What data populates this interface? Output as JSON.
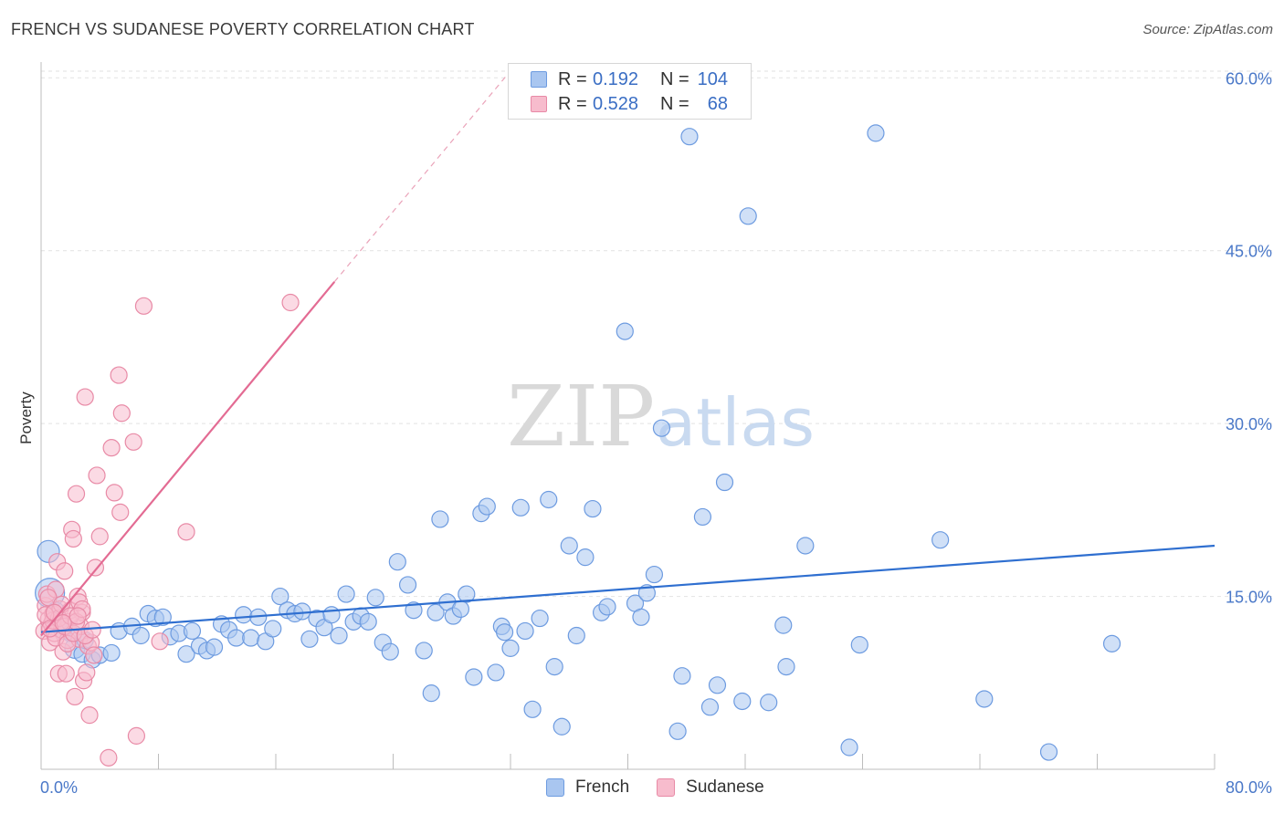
{
  "title": "FRENCH VS SUDANESE POVERTY CORRELATION CHART",
  "source": "Source: ZipAtlas.com",
  "watermark": {
    "zip": "ZIP",
    "atlas": "atlas"
  },
  "legend": {
    "rows": [
      {
        "label": "R =",
        "r": "0.192",
        "n_label": "N =",
        "n": "104",
        "color": "#a9c6f0",
        "border": "#6d9be0"
      },
      {
        "label": "R =",
        "r": "0.528",
        "n_label": "N =",
        "n": "68",
        "color": "#f7bccd",
        "border": "#e88aa6"
      }
    ]
  },
  "bottom_legend": [
    {
      "label": "French",
      "color": "#a9c6f0",
      "border": "#6d9be0"
    },
    {
      "label": "Sudanese",
      "color": "#f7bccd",
      "border": "#e88aa6"
    }
  ],
  "chart_data": {
    "type": "scatter",
    "title": "FRENCH VS SUDANESE POVERTY CORRELATION CHART",
    "xlabel": "",
    "ylabel": "Poverty",
    "xlim": [
      0,
      80
    ],
    "ylim": [
      0,
      62
    ],
    "x_tick_labels": [
      "0.0%",
      "80.0%"
    ],
    "y_ticks": [
      15,
      30,
      45,
      60
    ],
    "y_tick_labels": [
      "15.0%",
      "30.0%",
      "45.0%",
      "60.0%"
    ],
    "grid": true,
    "legend_position": "top-center",
    "series": [
      {
        "name": "French",
        "color": "#6d9be0",
        "fill": "#a9c6f0",
        "trend": {
          "x": [
            0,
            80
          ],
          "y": [
            11.9,
            19.4
          ],
          "color": "#2f6fd0"
        },
        "points": [
          [
            0.5,
            18.9
          ],
          [
            0.6,
            15.3
          ],
          [
            1.0,
            13.8
          ],
          [
            1.2,
            12.7
          ],
          [
            1.5,
            12.0
          ],
          [
            2.0,
            11.8
          ],
          [
            2.3,
            10.5
          ],
          [
            2.8,
            10.0
          ],
          [
            3.0,
            11.2
          ],
          [
            3.5,
            9.5
          ],
          [
            4.0,
            9.9
          ],
          [
            4.8,
            10.1
          ],
          [
            5.3,
            12.0
          ],
          [
            6.2,
            12.4
          ],
          [
            6.8,
            11.6
          ],
          [
            7.3,
            13.5
          ],
          [
            7.8,
            13.1
          ],
          [
            8.3,
            13.2
          ],
          [
            8.8,
            11.5
          ],
          [
            9.4,
            11.8
          ],
          [
            9.9,
            10.0
          ],
          [
            10.3,
            12.0
          ],
          [
            10.8,
            10.7
          ],
          [
            11.3,
            10.3
          ],
          [
            11.8,
            10.6
          ],
          [
            12.3,
            12.6
          ],
          [
            12.8,
            12.1
          ],
          [
            13.3,
            11.4
          ],
          [
            13.8,
            13.4
          ],
          [
            14.3,
            11.4
          ],
          [
            14.8,
            13.2
          ],
          [
            15.3,
            11.1
          ],
          [
            15.8,
            12.2
          ],
          [
            16.3,
            15.0
          ],
          [
            16.8,
            13.8
          ],
          [
            17.3,
            13.5
          ],
          [
            17.8,
            13.7
          ],
          [
            18.3,
            11.3
          ],
          [
            18.8,
            13.1
          ],
          [
            19.3,
            12.3
          ],
          [
            19.8,
            13.4
          ],
          [
            20.3,
            11.6
          ],
          [
            20.8,
            15.2
          ],
          [
            21.3,
            12.8
          ],
          [
            21.8,
            13.3
          ],
          [
            22.3,
            12.8
          ],
          [
            22.8,
            14.9
          ],
          [
            23.3,
            11.0
          ],
          [
            23.8,
            10.2
          ],
          [
            24.3,
            18.0
          ],
          [
            25.0,
            16.0
          ],
          [
            25.4,
            13.8
          ],
          [
            26.1,
            10.3
          ],
          [
            26.6,
            6.6
          ],
          [
            26.9,
            13.6
          ],
          [
            27.2,
            21.7
          ],
          [
            27.7,
            14.5
          ],
          [
            28.1,
            13.3
          ],
          [
            28.6,
            13.9
          ],
          [
            29.0,
            15.2
          ],
          [
            29.5,
            8.0
          ],
          [
            30.0,
            22.2
          ],
          [
            30.4,
            22.8
          ],
          [
            31.0,
            8.4
          ],
          [
            31.4,
            12.4
          ],
          [
            31.6,
            11.9
          ],
          [
            32.0,
            10.5
          ],
          [
            32.7,
            22.7
          ],
          [
            33.0,
            12.0
          ],
          [
            33.5,
            5.2
          ],
          [
            34.0,
            13.1
          ],
          [
            34.6,
            23.4
          ],
          [
            35.0,
            8.9
          ],
          [
            35.5,
            3.7
          ],
          [
            36.0,
            19.4
          ],
          [
            36.5,
            11.6
          ],
          [
            37.1,
            18.4
          ],
          [
            37.6,
            22.6
          ],
          [
            38.2,
            13.6
          ],
          [
            38.6,
            14.1
          ],
          [
            39.8,
            38.0
          ],
          [
            40.5,
            14.4
          ],
          [
            40.9,
            13.2
          ],
          [
            41.3,
            15.3
          ],
          [
            41.8,
            16.9
          ],
          [
            42.3,
            29.6
          ],
          [
            43.4,
            3.3
          ],
          [
            43.7,
            8.1
          ],
          [
            44.2,
            54.9
          ],
          [
            45.1,
            21.9
          ],
          [
            45.6,
            5.4
          ],
          [
            46.1,
            7.3
          ],
          [
            46.6,
            24.9
          ],
          [
            47.8,
            5.9
          ],
          [
            48.2,
            48.0
          ],
          [
            49.6,
            5.8
          ],
          [
            50.6,
            12.5
          ],
          [
            50.8,
            8.9
          ],
          [
            52.1,
            19.4
          ],
          [
            55.1,
            1.9
          ],
          [
            55.8,
            10.8
          ],
          [
            56.9,
            55.2
          ],
          [
            61.3,
            19.9
          ],
          [
            64.3,
            6.1
          ],
          [
            68.7,
            1.5
          ],
          [
            73.0,
            10.9
          ]
        ]
      },
      {
        "name": "Sudanese",
        "color": "#e88aa6",
        "fill": "#f7bccd",
        "trend": {
          "x": [
            0,
            20.0
          ],
          "y": [
            11.6,
            42.3
          ],
          "color": "#e36b93",
          "extended": {
            "x": [
              20.0,
              32.0
            ],
            "y": [
              42.3,
              60.6
            ]
          }
        },
        "points": [
          [
            0.2,
            12.0
          ],
          [
            0.3,
            14.2
          ],
          [
            0.4,
            15.2
          ],
          [
            0.5,
            13.0
          ],
          [
            0.6,
            11.0
          ],
          [
            0.7,
            12.6
          ],
          [
            0.8,
            13.5
          ],
          [
            0.9,
            11.8
          ],
          [
            1.0,
            15.6
          ],
          [
            1.1,
            18.0
          ],
          [
            1.2,
            8.3
          ],
          [
            1.3,
            13.9
          ],
          [
            1.4,
            12.1
          ],
          [
            1.5,
            10.2
          ],
          [
            1.6,
            17.2
          ],
          [
            1.7,
            8.3
          ],
          [
            1.8,
            11.2
          ],
          [
            1.9,
            12.8
          ],
          [
            2.0,
            13.8
          ],
          [
            2.1,
            20.8
          ],
          [
            2.2,
            20.0
          ],
          [
            2.3,
            6.3
          ],
          [
            2.4,
            23.9
          ],
          [
            2.5,
            15.0
          ],
          [
            2.6,
            11.3
          ],
          [
            2.7,
            12.4
          ],
          [
            2.8,
            13.6
          ],
          [
            2.9,
            7.7
          ],
          [
            3.0,
            32.3
          ],
          [
            3.1,
            8.4
          ],
          [
            3.2,
            10.7
          ],
          [
            3.3,
            4.7
          ],
          [
            3.4,
            11.0
          ],
          [
            3.6,
            9.9
          ],
          [
            3.7,
            17.5
          ],
          [
            3.8,
            25.5
          ],
          [
            4.0,
            20.2
          ],
          [
            4.6,
            1.0
          ],
          [
            4.8,
            27.9
          ],
          [
            5.0,
            24.0
          ],
          [
            5.3,
            34.2
          ],
          [
            5.4,
            22.3
          ],
          [
            5.5,
            30.9
          ],
          [
            6.3,
            28.4
          ],
          [
            6.5,
            2.9
          ],
          [
            7.0,
            40.2
          ],
          [
            8.1,
            11.1
          ],
          [
            9.9,
            20.6
          ],
          [
            17.0,
            40.5
          ],
          [
            0.5,
            14.9
          ],
          [
            0.8,
            12.9
          ],
          [
            1.0,
            11.4
          ],
          [
            1.2,
            13.1
          ],
          [
            1.4,
            14.3
          ],
          [
            1.6,
            12.4
          ],
          [
            1.8,
            10.9
          ],
          [
            2.0,
            13.3
          ],
          [
            2.2,
            11.8
          ],
          [
            2.4,
            12.8
          ],
          [
            2.6,
            14.5
          ],
          [
            2.8,
            13.9
          ],
          [
            3.0,
            11.6
          ],
          [
            0.3,
            13.4
          ],
          [
            0.6,
            12.2
          ],
          [
            0.9,
            13.6
          ],
          [
            1.5,
            12.7
          ],
          [
            2.5,
            13.3
          ],
          [
            3.5,
            12.1
          ]
        ]
      }
    ]
  }
}
